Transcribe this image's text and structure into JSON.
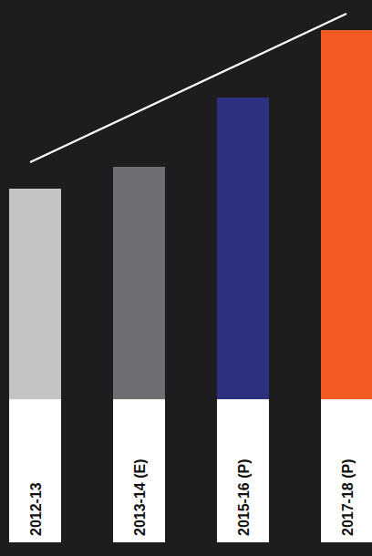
{
  "chart_data": {
    "type": "bar",
    "categories": [
      "2012-13",
      "2013-14 (E)",
      "2015-16 (P)",
      "2017-18 (P)"
    ],
    "values": [
      231,
      255,
      331,
      405
    ],
    "colors": [
      "#c3c4c6",
      "#6e6f72",
      "#2d2f7f",
      "#f15a22"
    ],
    "ylim": [
      0,
      420
    ],
    "tick_labels": "x"
  }
}
